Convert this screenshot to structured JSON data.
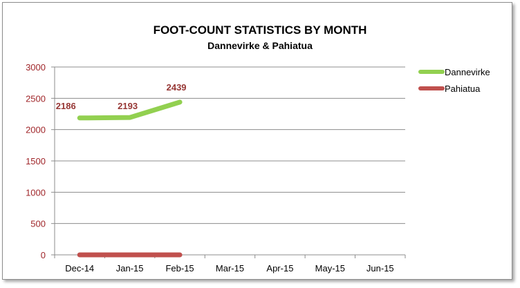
{
  "chart_data": {
    "type": "line",
    "title": "FOOT-COUNT STATISTICS BY MONTH",
    "subtitle": "Dannevirke & Pahiatua",
    "xlabel": "",
    "ylabel": "",
    "categories": [
      "Dec-14",
      "Jan-15",
      "Feb-15",
      "Mar-15",
      "Apr-15",
      "May-15",
      "Jun-15"
    ],
    "ylim": [
      0,
      3000
    ],
    "yticks": [
      0,
      500,
      1000,
      1500,
      2000,
      2500,
      3000
    ],
    "grid": true,
    "legend_position": "right",
    "series": [
      {
        "name": "Dannevirke",
        "color": "#92d050",
        "values": [
          2186,
          2193,
          2439,
          null,
          null,
          null,
          null
        ],
        "data_labels": [
          "2186",
          "2193",
          "2439"
        ]
      },
      {
        "name": "Pahiatua",
        "color": "#c0504d",
        "values": [
          0,
          0,
          0,
          null,
          null,
          null,
          null
        ],
        "data_labels": []
      }
    ]
  }
}
